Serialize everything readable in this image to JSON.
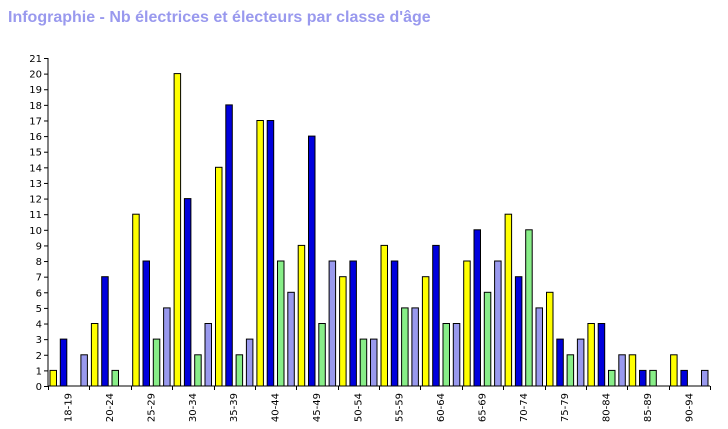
{
  "title": "Infographie - Nb électrices et électeurs par classe d'âge",
  "chart_data": {
    "type": "bar",
    "title": "Infographie - Nb électrices et électeurs par classe d'âge",
    "xlabel": "",
    "ylabel": "",
    "ylim": [
      0,
      21
    ],
    "yticks": [
      "0",
      "1",
      "2",
      "3",
      "4",
      "5",
      "6",
      "7",
      "8",
      "9",
      "10",
      "11",
      "12",
      "13",
      "14",
      "15",
      "16",
      "17",
      "18",
      "19",
      "20",
      "21"
    ],
    "grid": false,
    "legend": "none",
    "categories": [
      "18-19",
      "20-24",
      "25-29",
      "30-34",
      "35-39",
      "40-44",
      "45-49",
      "50-54",
      "55-59",
      "60-64",
      "65-69",
      "70-74",
      "75-79",
      "80-84",
      "85-89",
      "90-94"
    ],
    "series": [
      {
        "color": "#ffff00",
        "values": [
          1,
          4,
          11,
          20,
          14,
          17,
          9,
          7,
          9,
          7,
          8,
          11,
          6,
          4,
          2,
          2
        ]
      },
      {
        "color": "#0000dd",
        "values": [
          3,
          7,
          8,
          12,
          18,
          17,
          16,
          8,
          8,
          9,
          10,
          7,
          3,
          4,
          1,
          1
        ]
      },
      {
        "color": "#88ee88",
        "values": [
          0,
          1,
          3,
          2,
          2,
          8,
          4,
          3,
          5,
          4,
          6,
          10,
          2,
          1,
          1,
          0
        ]
      },
      {
        "color": "#9999ee",
        "values": [
          2,
          0,
          5,
          4,
          3,
          6,
          8,
          3,
          5,
          4,
          8,
          5,
          3,
          2,
          0,
          1
        ]
      }
    ]
  }
}
